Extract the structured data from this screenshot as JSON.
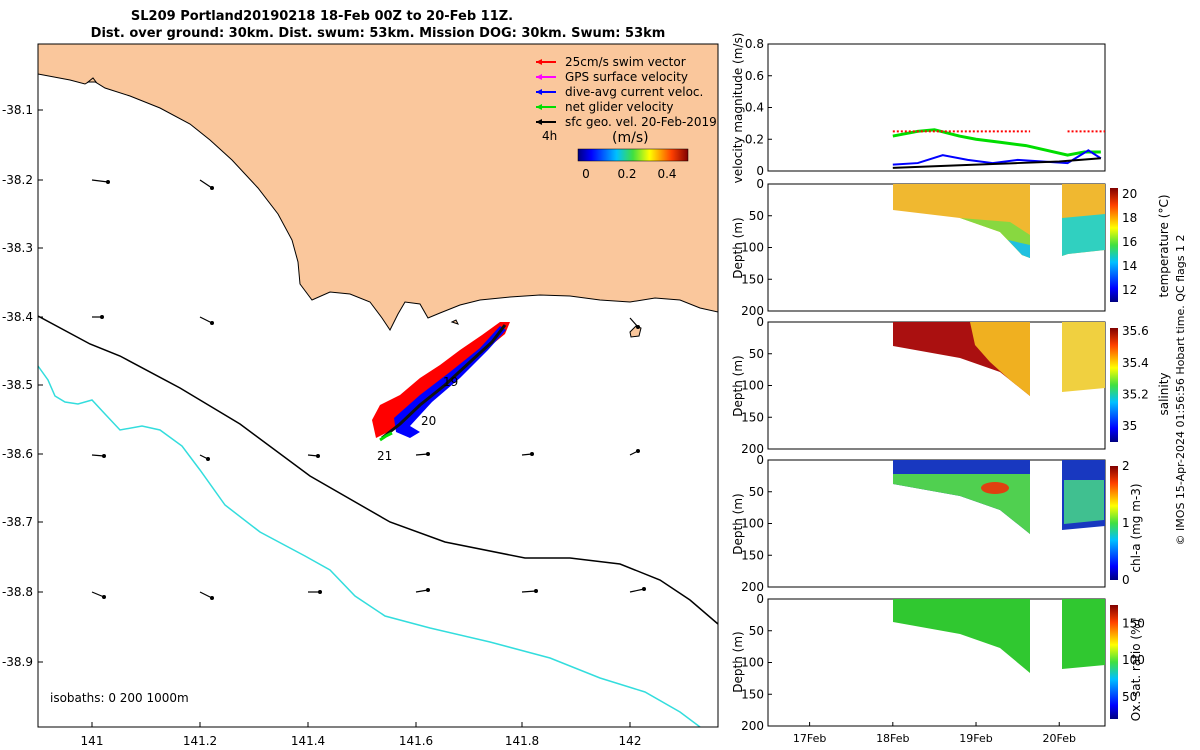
{
  "title": {
    "line1": "SL209 Portland20190218 18-Feb 00Z to 20-Feb 11Z.",
    "line2": "Dist. over ground: 30km. Dist. swum: 53km. Mission DOG: 30km. Swum: 53km"
  },
  "colors": {
    "land": "#fac79c",
    "swim": "#ff0000",
    "gps": "#ff00ff",
    "dive": "#0000ff",
    "net": "#00dd00",
    "geo": "#000000",
    "isobath200": "#000000",
    "isobath1000": "#33dddd"
  },
  "map": {
    "x_ticks": [
      "141",
      "141.2",
      "141.4",
      "141.6",
      "141.8",
      "142"
    ],
    "y_ticks": [
      "-38.1",
      "-38.2",
      "-38.3",
      "-38.4",
      "-38.5",
      "-38.6",
      "-38.7",
      "-38.8",
      "-38.9"
    ],
    "isobaths_label": "isobaths: 0   200  1000m",
    "legend": [
      {
        "label": "25cm/s swim vector",
        "color": "#ff0000"
      },
      {
        "label": "GPS surface velocity",
        "color": "#ff00ff"
      },
      {
        "label": "dive-avg current veloc.",
        "color": "#0000ff"
      },
      {
        "label": "net glider velocity",
        "color": "#00dd00"
      },
      {
        "label": "sfc geo. vel. 20-Feb-2019",
        "color": "#000000"
      }
    ],
    "scale_label": "4h",
    "colorbar_unit": "(m/s)",
    "colorbar_ticks": [
      "0",
      "0.2",
      "0.4"
    ],
    "day_labels": [
      "19",
      "20",
      "21"
    ]
  },
  "chart_data": [
    {
      "type": "line",
      "title": "",
      "xlabel": "",
      "ylabel": "velocity magnitude (m/s)",
      "ylim": [
        0,
        0.8
      ],
      "y_ticks": [
        "0",
        "0.2",
        "0.4",
        "0.6",
        "0.8"
      ],
      "x_range_days": [
        16.5,
        20.55
      ],
      "series": [
        {
          "name": "net glider velocity",
          "x": [
            18.0,
            18.3,
            18.5,
            18.8,
            19.0,
            19.3,
            19.6,
            20.1,
            20.3,
            20.5
          ],
          "y": [
            0.22,
            0.25,
            0.26,
            0.22,
            0.2,
            0.18,
            0.16,
            0.1,
            0.12,
            0.12
          ]
        },
        {
          "name": "dive-avg current veloc.",
          "x": [
            18.0,
            18.3,
            18.6,
            18.9,
            19.2,
            19.5,
            20.1,
            20.35,
            20.5
          ],
          "y": [
            0.04,
            0.05,
            0.1,
            0.07,
            0.05,
            0.07,
            0.05,
            0.13,
            0.08
          ]
        },
        {
          "name": "sfc geo. vel.",
          "x": [
            18.0,
            18.5,
            19.0,
            19.5,
            20.0,
            20.5
          ],
          "y": [
            0.02,
            0.03,
            0.04,
            0.05,
            0.06,
            0.08
          ]
        },
        {
          "name": "25cm/s swim vector",
          "x": [
            18.0,
            19.65,
            20.1,
            20.55
          ],
          "y": [
            0.25,
            0.25,
            0.25,
            0.25
          ]
        }
      ]
    },
    {
      "type": "heatmap",
      "ylabel": "Depth (m)",
      "colorbar_label": "temperature (°C)",
      "ylim": [
        200,
        0
      ],
      "y_ticks": [
        "0",
        "50",
        "100",
        "150",
        "200"
      ],
      "colorbar_ticks": [
        "12",
        "14",
        "16",
        "18",
        "20"
      ],
      "clim": [
        11,
        20.5
      ]
    },
    {
      "type": "heatmap",
      "ylabel": "Depth (m)",
      "colorbar_label": "salinity",
      "ylim": [
        200,
        0
      ],
      "y_ticks": [
        "0",
        "50",
        "100",
        "150",
        "200"
      ],
      "colorbar_ticks": [
        "35",
        "35.2",
        "35.4",
        "35.6"
      ],
      "clim": [
        34.9,
        35.62
      ]
    },
    {
      "type": "heatmap",
      "ylabel": "Depth (m)",
      "colorbar_label": "chl-a (mg m-3)",
      "ylim": [
        200,
        0
      ],
      "y_ticks": [
        "0",
        "50",
        "100",
        "150",
        "200"
      ],
      "colorbar_ticks": [
        "0",
        "1",
        "2"
      ],
      "clim": [
        0,
        2
      ]
    },
    {
      "type": "heatmap",
      "ylabel": "Depth (m)",
      "colorbar_label": "Ox. sat. ratio (%)",
      "ylim": [
        200,
        0
      ],
      "y_ticks": [
        "0",
        "50",
        "100",
        "150",
        "200"
      ],
      "colorbar_ticks": [
        "50",
        "100",
        "150"
      ],
      "clim": [
        20,
        175
      ],
      "x_ticks": [
        "17Feb",
        "18Feb",
        "19Feb",
        "20Feb"
      ]
    }
  ],
  "side_text": "© IMOS 15-Apr-2024 01:56:56 Hobart time. QC flags 1  2"
}
